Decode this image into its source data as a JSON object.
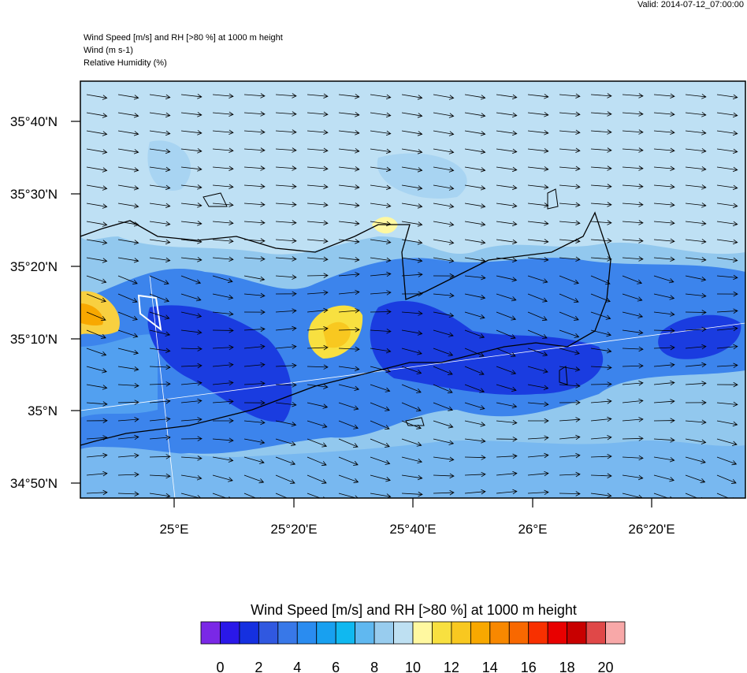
{
  "header": {
    "valid": "Valid: 2014-07-12_07:00:00",
    "lines": [
      "Wind Speed [m/s] and RH [>80 %] at 1000 m height",
      "Wind   (m s-1)",
      "Relative Humidity   (%)"
    ]
  },
  "map": {
    "lat_labels": [
      "35°40'N",
      "35°30'N",
      "35°20'N",
      "35°10'N",
      "35°N",
      "34°50'N"
    ],
    "lon_labels": [
      "25°E",
      "25°20'E",
      "25°40'E",
      "26°E",
      "26°20'E"
    ]
  },
  "colorbar": {
    "title": "Wind Speed [m/s] and RH [>80 %] at 1000 m height",
    "colors": [
      "#7a28e6",
      "#2a18e8",
      "#1530e0",
      "#3058e0",
      "#3878e8",
      "#2a8cf0",
      "#18a0f0",
      "#10b8f0",
      "#60b8f0",
      "#98ccee",
      "#bee0f2",
      "#fff8a0",
      "#f8e040",
      "#f8c820",
      "#f8a800",
      "#f88800",
      "#f86800",
      "#f83000",
      "#e80000",
      "#c80000",
      "#e04848",
      "#f8a8a8"
    ],
    "labels": [
      "0",
      "2",
      "4",
      "6",
      "8",
      "10",
      "12",
      "14",
      "16",
      "18",
      "20"
    ]
  }
}
